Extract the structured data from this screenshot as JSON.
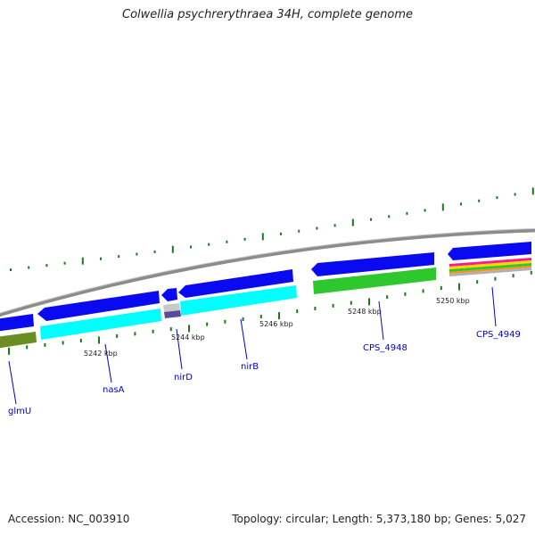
{
  "title": "Colwellia psychrerythraea 34H, complete genome",
  "footer": {
    "accession": "Accession: NC_003910",
    "stats": "Topology: circular; Length: 5,373,180 bp; Genes: 5,027"
  },
  "colors": {
    "forward_cds": "#0a0af0",
    "reverse_cds": "#00ffff",
    "green_feature": "#2ec82e",
    "olive_feature": "#6b8e23",
    "backbone": "#909090",
    "ticks": "#1a7a1a",
    "gene_label": "#0000cc"
  },
  "tick_labels": [
    "5242 kbp",
    "5244 kbp",
    "5246 kbp",
    "5248 kbp",
    "5250 kbp"
  ],
  "gene_labels": [
    "glmU",
    "nasA",
    "nirD",
    "nirB",
    "CPS_4948",
    "CPS_4949"
  ]
}
